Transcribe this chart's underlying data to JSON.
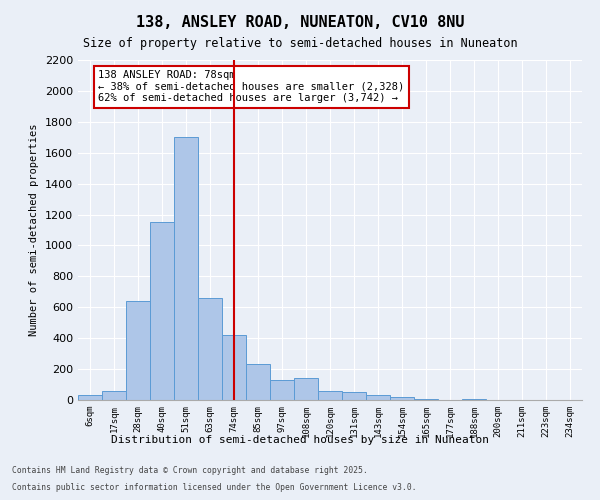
{
  "title1": "138, ANSLEY ROAD, NUNEATON, CV10 8NU",
  "title2": "Size of property relative to semi-detached houses in Nuneaton",
  "xlabel": "Distribution of semi-detached houses by size in Nuneaton",
  "ylabel": "Number of semi-detached properties",
  "annotation_title": "138 ANSLEY ROAD: 78sqm",
  "annotation_line1": "← 38% of semi-detached houses are smaller (2,328)",
  "annotation_line2": "62% of semi-detached houses are larger (3,742) →",
  "footer1": "Contains HM Land Registry data © Crown copyright and database right 2025.",
  "footer2": "Contains public sector information licensed under the Open Government Licence v3.0.",
  "bin_labels": [
    "6sqm",
    "17sqm",
    "28sqm",
    "40sqm",
    "51sqm",
    "63sqm",
    "74sqm",
    "85sqm",
    "97sqm",
    "108sqm",
    "120sqm",
    "131sqm",
    "143sqm",
    "154sqm",
    "165sqm",
    "177sqm",
    "188sqm",
    "200sqm",
    "211sqm",
    "223sqm",
    "234sqm"
  ],
  "bar_values": [
    30,
    60,
    640,
    1150,
    1700,
    660,
    420,
    230,
    130,
    140,
    60,
    50,
    30,
    20,
    5,
    0,
    5,
    0,
    0,
    0,
    0
  ],
  "bar_color": "#aec6e8",
  "bar_edge_color": "#5b9bd5",
  "vline_x": 6,
  "vline_color": "#cc0000",
  "ylim": [
    0,
    2200
  ],
  "yticks": [
    0,
    200,
    400,
    600,
    800,
    1000,
    1200,
    1400,
    1600,
    1800,
    2000,
    2200
  ],
  "background_color": "#eaeff7",
  "plot_bg_color": "#eaeff7",
  "grid_color": "#ffffff",
  "annotation_box_color": "#ffffff",
  "annotation_box_edge": "#cc0000"
}
